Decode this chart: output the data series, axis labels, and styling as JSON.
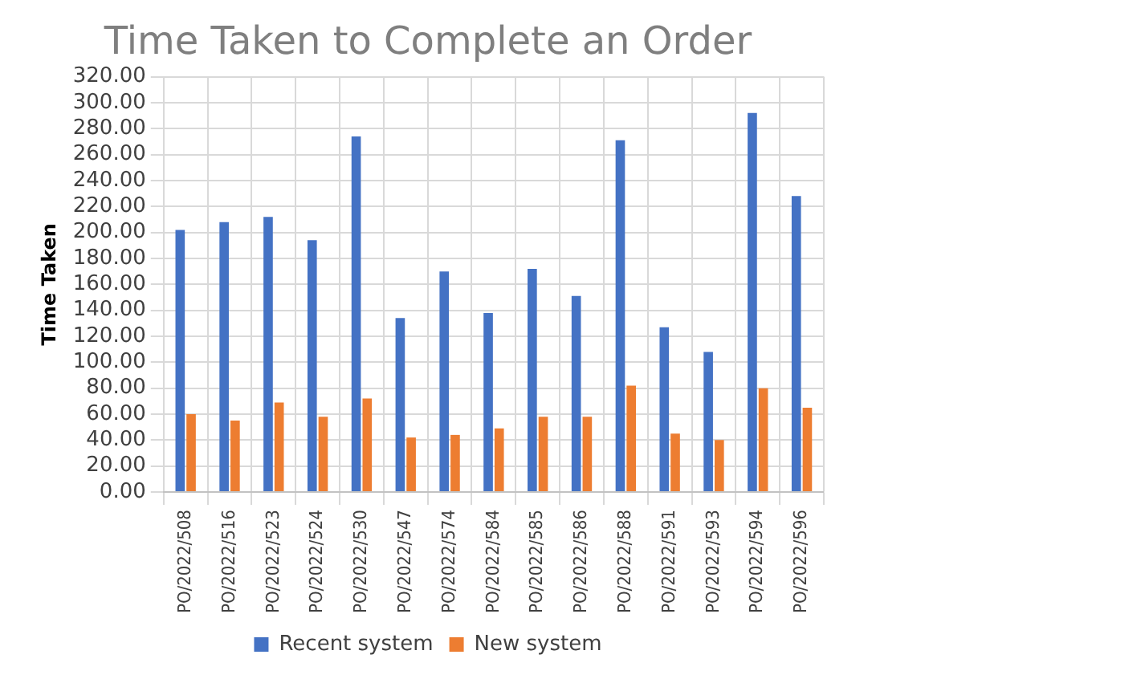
{
  "chart_data": {
    "type": "bar",
    "title": "Time Taken to Complete an Order",
    "ylabel": "Time Taken",
    "categories": [
      "PO/2022/508",
      "PO/2022/516",
      "PO/2022/523",
      "PO/2022/524",
      "PO/2022/530",
      "PO/2022/547",
      "PO/2022/574",
      "PO/2022/584",
      "PO/2022/585",
      "PO/2022/586",
      "PO/2022/588",
      "PO/2022/591",
      "PO/2022/593",
      "PO/2022/594",
      "PO/2022/596"
    ],
    "series": [
      {
        "name": "Recent system",
        "color": "#4472c4",
        "values": [
          202,
          208,
          212,
          194,
          274,
          134,
          170,
          138,
          172,
          151,
          271,
          127,
          108,
          292,
          228
        ]
      },
      {
        "name": "New system",
        "color": "#ed7d31",
        "values": [
          60,
          55,
          69,
          58,
          72,
          42,
          44,
          49,
          58,
          58,
          82,
          45,
          40,
          80,
          65
        ]
      }
    ],
    "ylim": [
      0,
      320
    ],
    "yticks": [
      {
        "value": 0,
        "label": "0.00"
      },
      {
        "value": 20,
        "label": "20.00"
      },
      {
        "value": 40,
        "label": "40.00"
      },
      {
        "value": 60,
        "label": "60.00"
      },
      {
        "value": 80,
        "label": "80.00"
      },
      {
        "value": 100,
        "label": "100.00"
      },
      {
        "value": 120,
        "label": "120.00"
      },
      {
        "value": 140,
        "label": "140.00"
      },
      {
        "value": 160,
        "label": "160.00"
      },
      {
        "value": 180,
        "label": "180.00"
      },
      {
        "value": 200,
        "label": "200.00"
      },
      {
        "value": 220,
        "label": "220.00"
      },
      {
        "value": 240,
        "label": "240.00"
      },
      {
        "value": 260,
        "label": "260.00"
      },
      {
        "value": 280,
        "label": "280.00"
      },
      {
        "value": 300,
        "label": "300.00"
      },
      {
        "value": 320,
        "label": "320.00"
      }
    ],
    "grid": true,
    "legend": "bottom"
  }
}
